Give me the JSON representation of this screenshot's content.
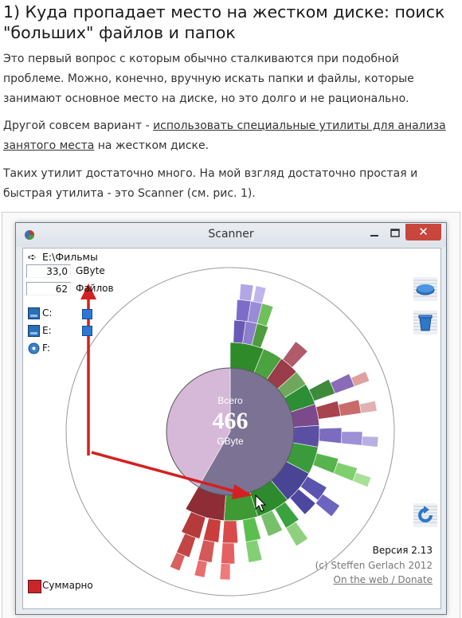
{
  "article": {
    "title": "1) Куда пропадает место на жестком диске: поиск \"больших\" файлов и папок",
    "p1": "Это первый вопрос с которым обычно сталкиваются при подобной проблеме. Можно, конечно, вручную искать папки и файлы, которые занимают основное место на диске, но это долго и не рационально.",
    "p2_before": "Другой совсем вариант - ",
    "p2_link": "использовать специальные утилиты для анализа занятого места",
    "p2_after": " на жестком диске.",
    "p3": "Таких утилит достаточно много. На мой взгляд достаточно простая и быстрая утилита - это Scanner (см. рис. 1)."
  },
  "window": {
    "title": "Scanner",
    "close_glyph": "✕",
    "path_arrow": "➪",
    "path": "E:\\Фильмы",
    "size_value": "33,0",
    "size_unit": "GByte",
    "files_value": "62",
    "files_label": "Файлов",
    "drives": [
      "C:",
      "E:",
      "F:"
    ],
    "center": {
      "label_top": "Всего",
      "value": "466",
      "label_bottom": "GByte"
    },
    "summary_label": "Суммарно",
    "version": "Версия 2.13",
    "copyright": "(c) Steffen Gerlach 2012",
    "web_link": "On the web / Donate"
  },
  "icons": {
    "app": "scanner-app-icon",
    "minimize": "minimize-icon",
    "maximize": "maximize-icon",
    "close": "close-icon",
    "path": "arrow-right-icon",
    "drive": "hard-drive-icon",
    "cd": "cd-drive-icon",
    "save": "disk-icon",
    "trash": "recycle-bin-icon",
    "refresh": "refresh-icon"
  },
  "colors": {
    "accent_red": "#d42020",
    "close_button": "#c9463d",
    "pie_light": "#d6b8d9",
    "pie_dark": "#7b7294"
  }
}
